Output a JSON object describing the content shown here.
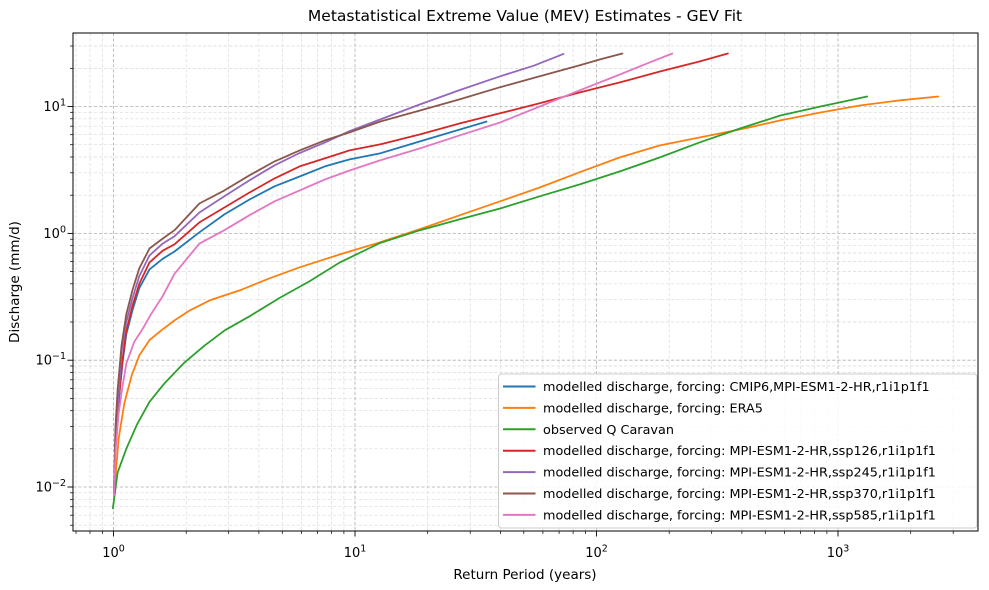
{
  "page": {
    "title": "Metastatistical Extreme Value (MEV) Estimates - GEV Fit"
  },
  "chart_data": {
    "type": "line",
    "title": "Metastatistical Extreme Value (MEV) Estimates - GEV Fit",
    "xlabel": "Return Period (years)",
    "ylabel": "Discharge (mm/d)",
    "x_scale": "log",
    "y_scale": "log",
    "xlim": [
      0.68,
      3800
    ],
    "ylim": [
      0.0045,
      38
    ],
    "grid": {
      "which": "both",
      "style": "dashed",
      "major_color": "#b0b0b0",
      "minor_color": "#d9d9d9"
    },
    "legend_position": "lower right",
    "x_ticks": [
      {
        "value": 1,
        "exp": "0"
      },
      {
        "value": 10,
        "exp": "1"
      },
      {
        "value": 100,
        "exp": "2"
      },
      {
        "value": 1000,
        "exp": "3"
      }
    ],
    "y_ticks": [
      {
        "value": 10,
        "exp": "1"
      },
      {
        "value": 1,
        "exp": "0"
      },
      {
        "value": 0.1,
        "exp": "−1"
      },
      {
        "value": 0.01,
        "exp": "−2"
      }
    ],
    "series": [
      {
        "id": "cmip6-hist",
        "name": "modelled discharge, forcing: CMIP6,MPI-ESM1-2-HR,r1i1p1f1",
        "color": "#1f77b4",
        "points": [
          [
            1.005,
            0.009
          ],
          [
            1.02,
            0.025
          ],
          [
            1.05,
            0.047
          ],
          [
            1.09,
            0.095
          ],
          [
            1.13,
            0.16
          ],
          [
            1.2,
            0.25
          ],
          [
            1.28,
            0.37
          ],
          [
            1.41,
            0.52
          ],
          [
            1.6,
            0.63
          ],
          [
            1.79,
            0.72
          ],
          [
            2.27,
            1.02
          ],
          [
            2.88,
            1.41
          ],
          [
            3.66,
            1.85
          ],
          [
            4.65,
            2.35
          ],
          [
            5.9,
            2.81
          ],
          [
            7.5,
            3.37
          ],
          [
            9.5,
            3.83
          ],
          [
            12.7,
            4.27
          ],
          [
            18.6,
            5.31
          ],
          [
            24.8,
            6.25
          ],
          [
            35,
            7.6
          ]
        ]
      },
      {
        "id": "era5",
        "name": "modelled discharge, forcing: ERA5",
        "color": "#ff7f0e",
        "points": [
          [
            1.005,
            0.0086
          ],
          [
            1.05,
            0.024
          ],
          [
            1.11,
            0.046
          ],
          [
            1.19,
            0.076
          ],
          [
            1.28,
            0.109
          ],
          [
            1.41,
            0.144
          ],
          [
            1.58,
            0.172
          ],
          [
            1.79,
            0.206
          ],
          [
            2.07,
            0.247
          ],
          [
            2.5,
            0.296
          ],
          [
            3.33,
            0.355
          ],
          [
            4.43,
            0.442
          ],
          [
            5.9,
            0.54
          ],
          [
            8.66,
            0.683
          ],
          [
            12.7,
            0.85
          ],
          [
            18.6,
            1.08
          ],
          [
            27.2,
            1.39
          ],
          [
            39.9,
            1.79
          ],
          [
            58.2,
            2.3
          ],
          [
            85,
            3.03
          ],
          [
            125,
            3.97
          ],
          [
            183,
            4.94
          ],
          [
            268,
            5.71
          ],
          [
            394,
            6.6
          ],
          [
            577,
            7.78
          ],
          [
            846,
            8.98
          ],
          [
            1240,
            10.2
          ],
          [
            1810,
            11.2
          ],
          [
            2600,
            12.0
          ]
        ]
      },
      {
        "id": "observed-caravan",
        "name": "observed Q Caravan",
        "color": "#2ca02c",
        "points": [
          [
            0.995,
            0.0068
          ],
          [
            1.04,
            0.013
          ],
          [
            1.13,
            0.02
          ],
          [
            1.25,
            0.031
          ],
          [
            1.41,
            0.047
          ],
          [
            1.63,
            0.066
          ],
          [
            1.97,
            0.096
          ],
          [
            2.38,
            0.13
          ],
          [
            2.89,
            0.172
          ],
          [
            3.66,
            0.222
          ],
          [
            4.88,
            0.31
          ],
          [
            6.5,
            0.42
          ],
          [
            8.66,
            0.59
          ],
          [
            12.7,
            0.84
          ],
          [
            18.6,
            1.06
          ],
          [
            27.2,
            1.29
          ],
          [
            39.9,
            1.57
          ],
          [
            58.2,
            1.96
          ],
          [
            85,
            2.43
          ],
          [
            125,
            3.08
          ],
          [
            183,
            3.97
          ],
          [
            268,
            5.22
          ],
          [
            394,
            6.72
          ],
          [
            577,
            8.5
          ],
          [
            846,
            10.0
          ],
          [
            1120,
            11.2
          ],
          [
            1320,
            12.0
          ]
        ]
      },
      {
        "id": "ssp126",
        "name": "modelled discharge, forcing: MPI-ESM1-2-HR,ssp126,r1i1p1f1",
        "color": "#d62728",
        "points": [
          [
            1.005,
            0.009
          ],
          [
            1.02,
            0.024
          ],
          [
            1.05,
            0.048
          ],
          [
            1.09,
            0.1
          ],
          [
            1.13,
            0.17
          ],
          [
            1.2,
            0.27
          ],
          [
            1.28,
            0.4
          ],
          [
            1.41,
            0.59
          ],
          [
            1.6,
            0.73
          ],
          [
            1.79,
            0.82
          ],
          [
            2.27,
            1.22
          ],
          [
            2.88,
            1.6
          ],
          [
            3.66,
            2.1
          ],
          [
            4.65,
            2.71
          ],
          [
            5.9,
            3.37
          ],
          [
            7.5,
            3.9
          ],
          [
            9.5,
            4.51
          ],
          [
            12.7,
            5.03
          ],
          [
            18.6,
            6.03
          ],
          [
            27.2,
            7.36
          ],
          [
            39.9,
            8.84
          ],
          [
            58.2,
            10.6
          ],
          [
            85,
            12.9
          ],
          [
            125,
            15.5
          ],
          [
            183,
            18.9
          ],
          [
            268,
            22.7
          ],
          [
            350,
            26.2
          ]
        ]
      },
      {
        "id": "ssp245",
        "name": "modelled discharge, forcing: MPI-ESM1-2-HR,ssp245,r1i1p1f1",
        "color": "#9467bd",
        "points": [
          [
            1.005,
            0.009
          ],
          [
            1.02,
            0.028
          ],
          [
            1.05,
            0.053
          ],
          [
            1.08,
            0.116
          ],
          [
            1.13,
            0.2
          ],
          [
            1.2,
            0.31
          ],
          [
            1.28,
            0.46
          ],
          [
            1.41,
            0.67
          ],
          [
            1.6,
            0.83
          ],
          [
            1.79,
            0.95
          ],
          [
            2.27,
            1.46
          ],
          [
            2.88,
            1.96
          ],
          [
            3.66,
            2.62
          ],
          [
            4.65,
            3.44
          ],
          [
            5.9,
            4.3
          ],
          [
            7.5,
            5.2
          ],
          [
            9.5,
            6.4
          ],
          [
            12.7,
            7.9
          ],
          [
            18.6,
            10.4
          ],
          [
            27.2,
            13.5
          ],
          [
            39.9,
            17.3
          ],
          [
            55,
            21.0
          ],
          [
            73,
            26.0
          ]
        ]
      },
      {
        "id": "ssp370",
        "name": "modelled discharge, forcing: MPI-ESM1-2-HR,ssp370,r1i1p1f1",
        "color": "#8c564b",
        "points": [
          [
            1.005,
            0.009
          ],
          [
            1.02,
            0.03
          ],
          [
            1.04,
            0.058
          ],
          [
            1.08,
            0.13
          ],
          [
            1.13,
            0.23
          ],
          [
            1.2,
            0.36
          ],
          [
            1.28,
            0.53
          ],
          [
            1.41,
            0.76
          ],
          [
            1.6,
            0.91
          ],
          [
            1.79,
            1.06
          ],
          [
            2.27,
            1.72
          ],
          [
            2.88,
            2.18
          ],
          [
            3.66,
            2.87
          ],
          [
            4.65,
            3.69
          ],
          [
            5.9,
            4.51
          ],
          [
            7.5,
            5.41
          ],
          [
            9.5,
            6.25
          ],
          [
            12.7,
            7.6
          ],
          [
            18.6,
            9.3
          ],
          [
            27.2,
            11.4
          ],
          [
            39.9,
            14.2
          ],
          [
            58.2,
            17.3
          ],
          [
            85,
            21.1
          ],
          [
            103,
            23.5
          ],
          [
            128,
            26.2
          ]
        ]
      },
      {
        "id": "ssp585",
        "name": "modelled discharge, forcing: MPI-ESM1-2-HR,ssp585,r1i1p1f1",
        "color": "#e377c2",
        "points": [
          [
            1.005,
            0.0086
          ],
          [
            1.02,
            0.019
          ],
          [
            1.05,
            0.038
          ],
          [
            1.09,
            0.062
          ],
          [
            1.13,
            0.094
          ],
          [
            1.22,
            0.14
          ],
          [
            1.31,
            0.172
          ],
          [
            1.44,
            0.235
          ],
          [
            1.6,
            0.32
          ],
          [
            1.79,
            0.48
          ],
          [
            2.27,
            0.83
          ],
          [
            2.88,
            1.06
          ],
          [
            3.66,
            1.39
          ],
          [
            4.65,
            1.79
          ],
          [
            5.9,
            2.18
          ],
          [
            7.5,
            2.66
          ],
          [
            9.5,
            3.13
          ],
          [
            12.7,
            3.76
          ],
          [
            18.6,
            4.68
          ],
          [
            27.2,
            5.93
          ],
          [
            39.9,
            7.49
          ],
          [
            58.2,
            10.0
          ],
          [
            85,
            13.4
          ],
          [
            125,
            17.9
          ],
          [
            166,
            22.3
          ],
          [
            206,
            26.2
          ]
        ]
      }
    ]
  }
}
